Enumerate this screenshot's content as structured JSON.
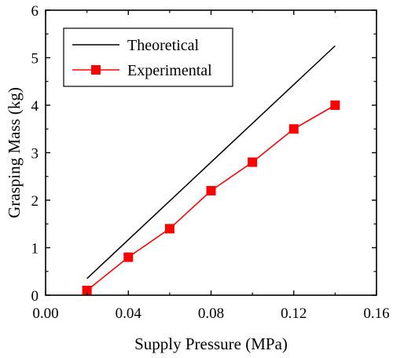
{
  "chart_data": {
    "type": "line",
    "xlabel": "Supply Pressure (MPa)",
    "ylabel": "Grasping Mass (kg)",
    "xlim": [
      0.0,
      0.16
    ],
    "ylim": [
      0,
      6
    ],
    "x_ticks": [
      "0.00",
      "0.04",
      "0.08",
      "0.12",
      "0.16"
    ],
    "y_ticks": [
      "0",
      "1",
      "2",
      "3",
      "4",
      "5",
      "6"
    ],
    "legend_position": "top-left",
    "series": [
      {
        "name": "Theoretical",
        "color": "#000000",
        "marker": "none",
        "x": [
          0.02,
          0.14
        ],
        "y": [
          0.35,
          5.25
        ]
      },
      {
        "name": "Experimental",
        "color": "#ff0000",
        "marker": "square",
        "x": [
          0.02,
          0.04,
          0.06,
          0.08,
          0.1,
          0.12,
          0.14
        ],
        "y": [
          0.1,
          0.8,
          1.4,
          2.2,
          2.8,
          3.5,
          4.0
        ]
      }
    ]
  }
}
